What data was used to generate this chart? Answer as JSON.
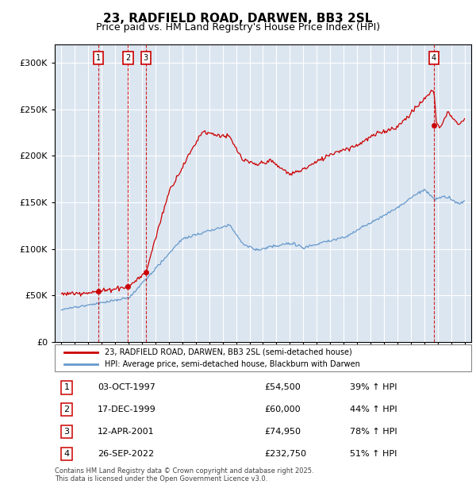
{
  "title": "23, RADFIELD ROAD, DARWEN, BB3 2SL",
  "subtitle": "Price paid vs. HM Land Registry's House Price Index (HPI)",
  "background_color": "#dce6f1",
  "plot_bg_color": "#dce6f1",
  "transactions": [
    {
      "num": 1,
      "date": "03-OCT-1997",
      "date_x": 1997.75,
      "price": 54500,
      "pct": "39%",
      "dir": "↑"
    },
    {
      "num": 2,
      "date": "17-DEC-1999",
      "date_x": 1999.96,
      "price": 60000,
      "pct": "44%",
      "dir": "↑"
    },
    {
      "num": 3,
      "date": "12-APR-2001",
      "date_x": 2001.28,
      "price": 74950,
      "pct": "78%",
      "dir": "↑"
    },
    {
      "num": 4,
      "date": "26-SEP-2022",
      "date_x": 2022.73,
      "price": 232750,
      "pct": "51%",
      "dir": "↑"
    }
  ],
  "legend_label_red": "23, RADFIELD ROAD, DARWEN, BB3 2SL (semi-detached house)",
  "legend_label_blue": "HPI: Average price, semi-detached house, Blackburn with Darwen",
  "footer": "Contains HM Land Registry data © Crown copyright and database right 2025.\nThis data is licensed under the Open Government Licence v3.0.",
  "ylim": [
    0,
    320000
  ],
  "xlim": [
    1994.5,
    2025.5
  ],
  "yticks": [
    0,
    50000,
    100000,
    150000,
    200000,
    250000,
    300000
  ],
  "red_color": "#cc0000",
  "blue_color": "#6699cc",
  "table_data": [
    [
      "1",
      "03-OCT-1997",
      "£54,500",
      "39% ↑ HPI"
    ],
    [
      "2",
      "17-DEC-1999",
      "£60,000",
      "44% ↑ HPI"
    ],
    [
      "3",
      "12-APR-2001",
      "£74,950",
      "78% ↑ HPI"
    ],
    [
      "4",
      "26-SEP-2022",
      "£232,750",
      "51% ↑ HPI"
    ]
  ]
}
